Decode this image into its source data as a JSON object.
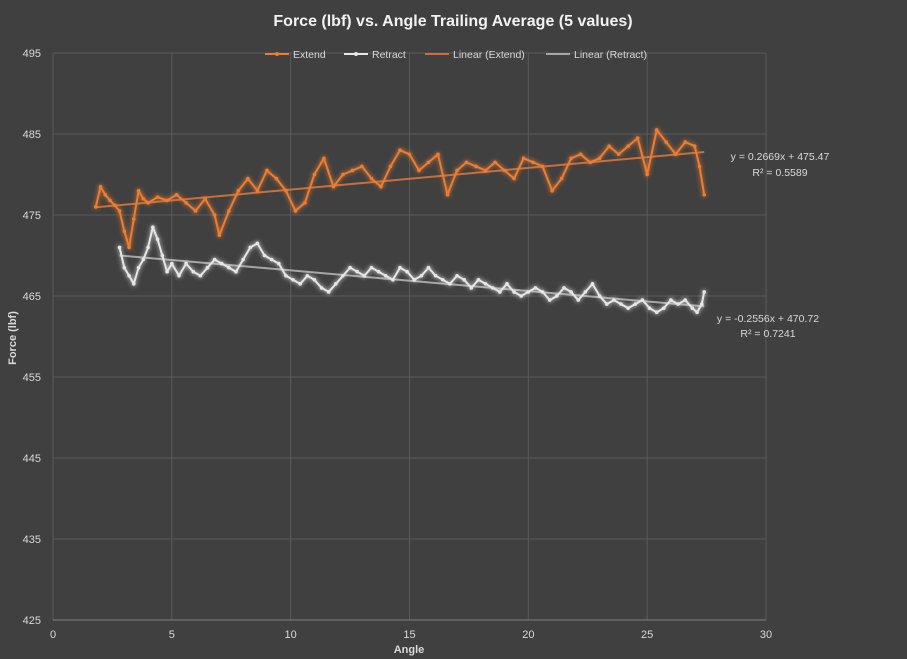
{
  "chart_data": {
    "type": "line",
    "title": "Force (lbf) vs. Angle Trailing Average (5 values)",
    "xlabel": "Angle",
    "ylabel": "Force (lbf)",
    "xlim": [
      0,
      30
    ],
    "ylim": [
      425,
      495
    ],
    "xticks": [
      "0",
      "5",
      "10",
      "15",
      "20",
      "25",
      "30"
    ],
    "yticks": [
      "425",
      "435",
      "445",
      "455",
      "465",
      "475",
      "485",
      "495"
    ],
    "grid": true,
    "legend": "top",
    "colors": {
      "extend": "#ed7d31",
      "retract": "#e6e6e6",
      "trend_extend": "#c9703a",
      "trend_retract": "#a6a6a6"
    },
    "legend_items": [
      "Extend",
      "Retract",
      "Linear (Extend)",
      "Linear (Retract)"
    ],
    "series": [
      {
        "name": "Extend",
        "x": [
          1.8,
          2.0,
          2.2,
          2.4,
          2.6,
          2.8,
          3.0,
          3.2,
          3.4,
          3.6,
          3.8,
          4.0,
          4.4,
          4.8,
          5.2,
          5.6,
          6.0,
          6.4,
          6.8,
          7.0,
          7.4,
          7.8,
          8.2,
          8.6,
          9.0,
          9.4,
          9.8,
          10.2,
          10.6,
          11.0,
          11.4,
          11.8,
          12.2,
          12.6,
          13.0,
          13.4,
          13.8,
          14.2,
          14.6,
          15.0,
          15.4,
          15.8,
          16.2,
          16.6,
          17.0,
          17.4,
          17.8,
          18.2,
          18.6,
          19.0,
          19.4,
          19.8,
          20.2,
          20.6,
          21.0,
          21.4,
          21.8,
          22.2,
          22.6,
          23.0,
          23.4,
          23.8,
          24.2,
          24.6,
          25.0,
          25.4,
          25.8,
          26.2,
          26.6,
          27.0,
          27.2,
          27.4
        ],
        "y": [
          476.0,
          478.5,
          477.5,
          476.8,
          476.2,
          475.5,
          473.0,
          471.0,
          474.5,
          478.0,
          477.0,
          476.5,
          477.2,
          476.8,
          477.5,
          476.5,
          475.5,
          477.0,
          475.0,
          472.5,
          475.5,
          478.0,
          479.5,
          478.0,
          480.5,
          479.5,
          478.0,
          475.5,
          476.5,
          480.0,
          482.0,
          478.5,
          480.0,
          480.5,
          481.0,
          479.5,
          478.5,
          481.0,
          483.0,
          482.5,
          480.5,
          481.5,
          482.5,
          477.5,
          480.5,
          481.5,
          481.0,
          480.5,
          481.5,
          480.5,
          479.5,
          482.0,
          481.5,
          481.0,
          478.0,
          479.5,
          482.0,
          482.5,
          481.5,
          482.0,
          483.5,
          482.5,
          483.5,
          484.5,
          480.0,
          485.5,
          484.0,
          482.5,
          484.0,
          483.5,
          481.0,
          477.5
        ]
      },
      {
        "name": "Retract",
        "x": [
          2.8,
          3.0,
          3.2,
          3.4,
          3.6,
          3.8,
          4.0,
          4.2,
          4.4,
          4.6,
          4.8,
          5.0,
          5.3,
          5.6,
          5.9,
          6.2,
          6.5,
          6.8,
          7.1,
          7.4,
          7.7,
          8.0,
          8.3,
          8.6,
          8.9,
          9.2,
          9.5,
          9.8,
          10.1,
          10.4,
          10.7,
          11.0,
          11.3,
          11.6,
          11.9,
          12.2,
          12.5,
          12.8,
          13.1,
          13.4,
          13.7,
          14.0,
          14.3,
          14.6,
          14.9,
          15.2,
          15.5,
          15.8,
          16.1,
          16.4,
          16.7,
          17.0,
          17.3,
          17.6,
          17.9,
          18.2,
          18.5,
          18.8,
          19.1,
          19.4,
          19.7,
          20.0,
          20.3,
          20.6,
          20.9,
          21.2,
          21.5,
          21.8,
          22.1,
          22.4,
          22.7,
          23.0,
          23.3,
          23.6,
          23.9,
          24.2,
          24.5,
          24.8,
          25.1,
          25.4,
          25.7,
          26.0,
          26.3,
          26.6,
          26.9,
          27.1,
          27.3,
          27.4
        ],
        "y": [
          471.0,
          468.5,
          467.5,
          466.5,
          468.5,
          469.5,
          471.0,
          473.5,
          472.0,
          470.0,
          468.0,
          469.0,
          467.5,
          469.0,
          468.0,
          467.5,
          468.5,
          469.5,
          469.0,
          468.5,
          468.0,
          469.5,
          471.0,
          471.5,
          470.0,
          469.5,
          469.0,
          467.5,
          467.0,
          466.5,
          467.5,
          467.0,
          466.0,
          465.5,
          466.5,
          467.5,
          468.5,
          468.0,
          467.5,
          468.5,
          468.0,
          467.5,
          467.0,
          468.5,
          468.0,
          467.0,
          467.5,
          468.5,
          467.5,
          467.0,
          466.5,
          467.5,
          467.0,
          466.0,
          467.0,
          466.5,
          466.0,
          465.5,
          466.5,
          465.5,
          465.0,
          465.5,
          466.0,
          465.5,
          464.5,
          465.0,
          466.0,
          465.5,
          464.5,
          465.5,
          466.5,
          465.0,
          464.0,
          464.5,
          464.0,
          463.5,
          464.0,
          464.5,
          463.5,
          463.0,
          463.5,
          464.5,
          464.0,
          464.5,
          463.5,
          463.0,
          464.0,
          465.5
        ]
      }
    ],
    "trendlines": [
      {
        "name": "Linear (Extend)",
        "slope": 0.2669,
        "intercept": 475.47,
        "x_range": [
          1.8,
          27.4
        ],
        "equation": "y = 0.2669x  + 475.47",
        "r2": "R² = 0.5589"
      },
      {
        "name": "Linear (Retract)",
        "slope": -0.2556,
        "intercept": 470.72,
        "x_range": [
          2.8,
          27.4
        ],
        "equation": "y = -0.2556x  + 470.72",
        "r2": "R² = 0.7241"
      }
    ]
  }
}
